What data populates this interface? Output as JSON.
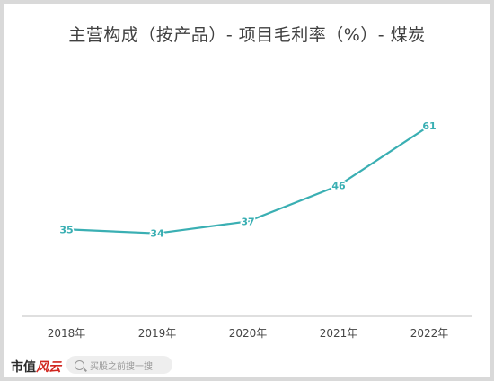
{
  "chart_data": {
    "type": "line",
    "title": "主营构成（按产品）- 项目毛利率（%）- 煤炭",
    "categories": [
      "2018年",
      "2019年",
      "2020年",
      "2021年",
      "2022年"
    ],
    "series": [
      {
        "values": [
          35,
          34,
          37,
          46,
          61
        ],
        "color": "#3aafb3"
      }
    ],
    "data_labels": [
      "35",
      "34",
      "37",
      "46",
      "61"
    ],
    "ylim": [
      15,
      70
    ],
    "grid": false,
    "legend": "none"
  },
  "footer": {
    "logo_text_a": "市值",
    "logo_text_b": "风云",
    "search_placeholder": "买股之前搜一搜"
  },
  "colors": {
    "line": "#3aafb3",
    "label": "#3aafb3",
    "axis": "#bfbfbf",
    "tick_text": "#444444"
  }
}
